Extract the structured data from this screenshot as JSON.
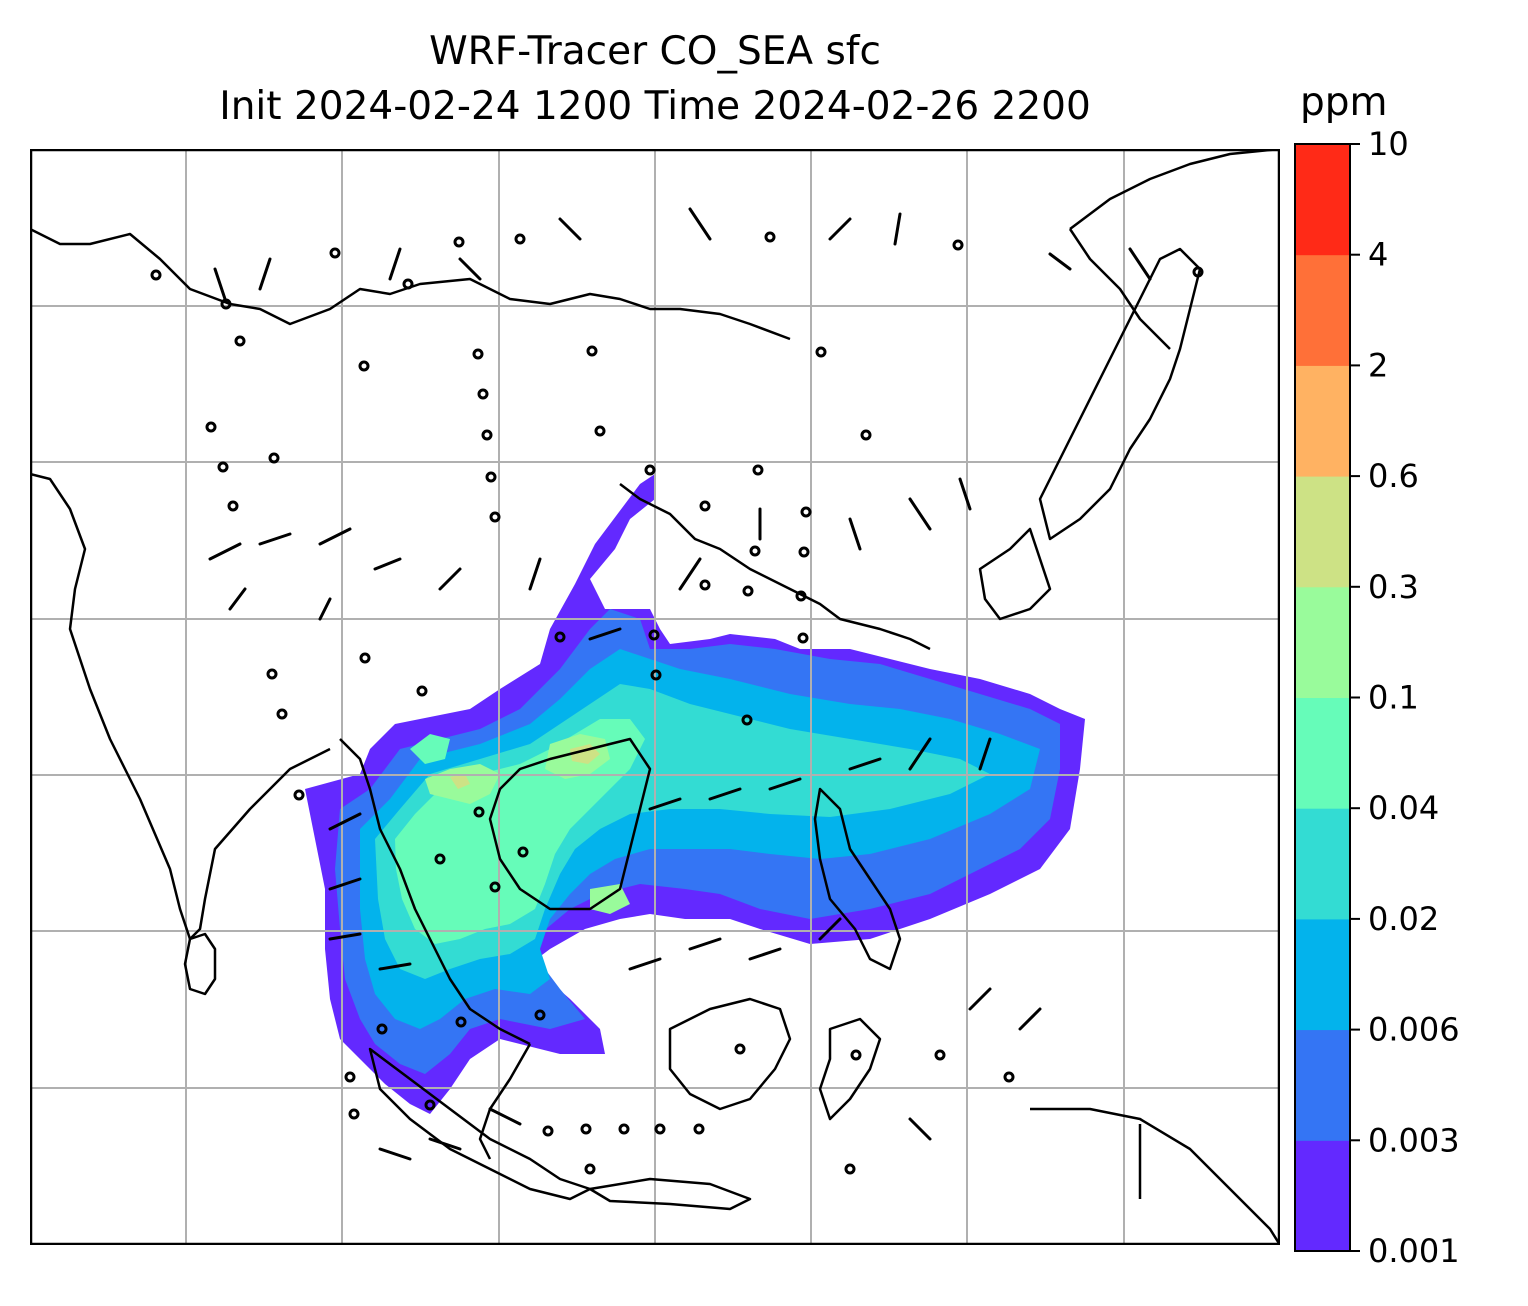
{
  "title": "WRF-Tracer CO_SEA sfc",
  "subtitle": "Init 2024-02-24 1200 Time 2024-02-26 2200",
  "colorbar": {
    "unit": "ppm",
    "levels": [
      "0.001",
      "0.003",
      "0.006",
      "0.02",
      "0.04",
      "0.1",
      "0.3",
      "0.6",
      "2",
      "4",
      "10"
    ],
    "colors": [
      "#6329ff",
      "#3475f4",
      "#03b3ec",
      "#33dcd3",
      "#66fcb9",
      "#99fb9b",
      "#cde285",
      "#ffb262",
      "#ff7038",
      "#ff2a17"
    ]
  },
  "map": {
    "gridlines": true,
    "land_outline_color": "#000000",
    "grid_color": "#b0b0b0"
  }
}
